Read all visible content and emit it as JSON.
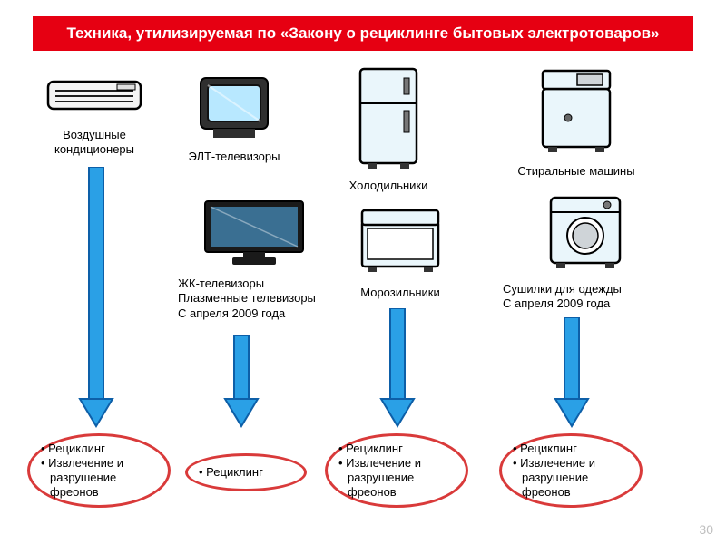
{
  "title": "Техника, утилизируемая по «Закону о рециклинге бытовых электротоваров»",
  "colors": {
    "title_bg": "#e60012",
    "title_fg": "#ffffff",
    "arrow_fill": "#2aa0e6",
    "arrow_stroke": "#0d5fa8",
    "outcome_border": "#d93a3a",
    "outcome_text": "#000000",
    "caption_text": "#000000",
    "page_num": "#bfbfbf",
    "background": "#ffffff"
  },
  "items": {
    "ac": {
      "label": "Воздушные\nкондиционеры"
    },
    "crt": {
      "label": "ЭЛТ-телевизоры"
    },
    "fridge": {
      "label": "Холодильники"
    },
    "washer": {
      "label": "Стиральные машины"
    },
    "flat": {
      "label": "ЖК-телевизоры\nПлазменные телевизоры\nС апреля 2009 года"
    },
    "freezer": {
      "label": "Морозильники"
    },
    "dryer": {
      "label": "Сушилки для одежды\nС апреля 2009 года"
    }
  },
  "outcomes": {
    "a": {
      "lines": [
        "Рециклинг",
        "Извлечение и",
        "разрушение",
        "фреонов"
      ]
    },
    "b": {
      "lines": [
        "Рециклинг"
      ]
    },
    "c": {
      "lines": [
        "Рециклинг",
        "Извлечение и",
        "разрушение",
        "фреонов"
      ]
    },
    "d": {
      "lines": [
        "Рециклинг",
        "Извлечение и",
        "разрушение",
        "фреонов"
      ]
    }
  },
  "page_number": "30"
}
